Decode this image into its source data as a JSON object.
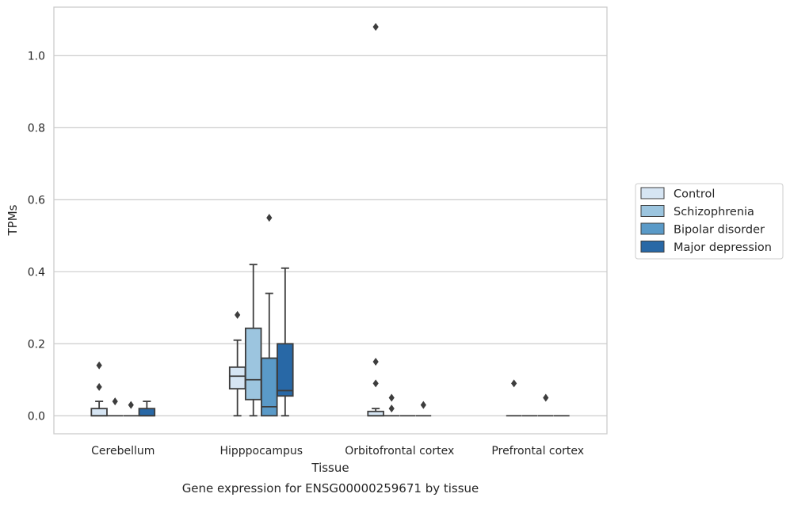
{
  "caption": "Gene expression for ENSG00000259671 by tissue",
  "chart_data": {
    "type": "box",
    "xlabel": "Tissue",
    "ylabel": "TPMs",
    "ylim": [
      -0.05,
      1.135
    ],
    "yticks": [
      0.0,
      0.2,
      0.4,
      0.6,
      0.8,
      1.0
    ],
    "ytick_labels": [
      "0.0",
      "0.2",
      "0.4",
      "0.6",
      "0.8",
      "1.0"
    ],
    "grid": true,
    "legend_position": "right",
    "categories": [
      "Cerebellum",
      "Hipppocampus",
      "Orbitofrontal cortex",
      "Prefrontal cortex"
    ],
    "series": [
      {
        "name": "Control",
        "color": "#d6e5f3",
        "boxes": [
          {
            "category": "Cerebellum",
            "whislo": 0.0,
            "q1": 0.0,
            "med": 0.0,
            "q3": 0.02,
            "whishi": 0.04,
            "fliers": [
              0.08,
              0.14
            ]
          },
          {
            "category": "Hipppocampus",
            "whislo": 0.0,
            "q1": 0.075,
            "med": 0.11,
            "q3": 0.135,
            "whishi": 0.21,
            "fliers": [
              0.28
            ]
          },
          {
            "category": "Orbitofrontal cortex",
            "whislo": 0.0,
            "q1": 0.0,
            "med": 0.0,
            "q3": 0.012,
            "whishi": 0.02,
            "fliers": [
              0.09,
              0.15,
              1.08
            ]
          },
          {
            "category": "Prefrontal cortex",
            "whislo": 0.0,
            "q1": 0.0,
            "med": 0.0,
            "q3": 0.0,
            "whishi": 0.0,
            "fliers": [
              0.09
            ]
          }
        ]
      },
      {
        "name": "Schizophrenia",
        "color": "#9cc5df",
        "boxes": [
          {
            "category": "Cerebellum",
            "whislo": 0.0,
            "q1": 0.0,
            "med": 0.0,
            "q3": 0.0,
            "whishi": 0.0,
            "fliers": [
              0.04
            ]
          },
          {
            "category": "Hipppocampus",
            "whislo": 0.0,
            "q1": 0.045,
            "med": 0.1,
            "q3": 0.243,
            "whishi": 0.42,
            "fliers": []
          },
          {
            "category": "Orbitofrontal cortex",
            "whislo": 0.0,
            "q1": 0.0,
            "med": 0.0,
            "q3": 0.0,
            "whishi": 0.0,
            "fliers": [
              0.02,
              0.05
            ]
          },
          {
            "category": "Prefrontal cortex",
            "whislo": 0.0,
            "q1": 0.0,
            "med": 0.0,
            "q3": 0.0,
            "whishi": 0.0,
            "fliers": []
          }
        ]
      },
      {
        "name": "Bipolar disorder",
        "color": "#5a9ac8",
        "boxes": [
          {
            "category": "Cerebellum",
            "whislo": 0.0,
            "q1": 0.0,
            "med": 0.0,
            "q3": 0.0,
            "whishi": 0.0,
            "fliers": [
              0.03
            ]
          },
          {
            "category": "Hipppocampus",
            "whislo": 0.0,
            "q1": 0.0,
            "med": 0.025,
            "q3": 0.16,
            "whishi": 0.34,
            "fliers": [
              0.55
            ]
          },
          {
            "category": "Orbitofrontal cortex",
            "whislo": 0.0,
            "q1": 0.0,
            "med": 0.0,
            "q3": 0.0,
            "whishi": 0.0,
            "fliers": []
          },
          {
            "category": "Prefrontal cortex",
            "whislo": 0.0,
            "q1": 0.0,
            "med": 0.0,
            "q3": 0.0,
            "whishi": 0.0,
            "fliers": [
              0.05
            ]
          }
        ]
      },
      {
        "name": "Major depression",
        "color": "#2868a6",
        "boxes": [
          {
            "category": "Cerebellum",
            "whislo": 0.0,
            "q1": 0.0,
            "med": 0.0,
            "q3": 0.02,
            "whishi": 0.04,
            "fliers": []
          },
          {
            "category": "Hipppocampus",
            "whislo": 0.0,
            "q1": 0.055,
            "med": 0.07,
            "q3": 0.2,
            "whishi": 0.41,
            "fliers": []
          },
          {
            "category": "Orbitofrontal cortex",
            "whislo": 0.0,
            "q1": 0.0,
            "med": 0.0,
            "q3": 0.0,
            "whishi": 0.0,
            "fliers": [
              0.03
            ]
          },
          {
            "category": "Prefrontal cortex",
            "whislo": 0.0,
            "q1": 0.0,
            "med": 0.0,
            "q3": 0.0,
            "whishi": 0.0,
            "fliers": []
          }
        ]
      }
    ]
  }
}
